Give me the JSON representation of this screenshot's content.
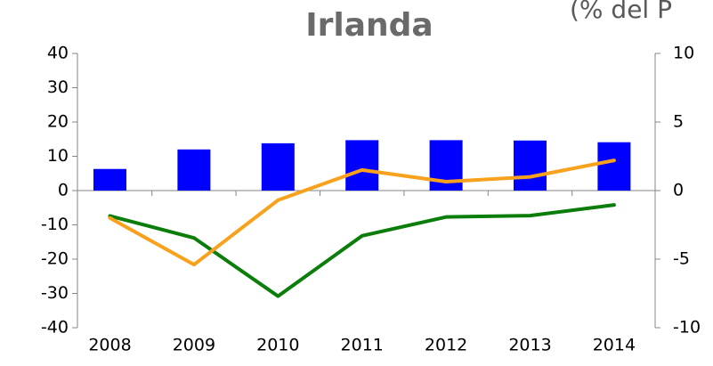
{
  "chart_data": {
    "type": "bar_line",
    "title": "Irlanda",
    "annotation": "(% del P",
    "categories": [
      "2008",
      "2009",
      "2010",
      "2011",
      "2012",
      "2013",
      "2014"
    ],
    "series": [
      {
        "type": "bar",
        "color": "#0000ff",
        "values": [
          6.3,
          12.0,
          13.8,
          14.7,
          14.7,
          14.6,
          14.1
        ]
      },
      {
        "type": "line",
        "color": "#0a7d0a",
        "values": [
          -7.4,
          -13.8,
          -30.8,
          -13.2,
          -7.7,
          -7.3,
          -4.2
        ]
      },
      {
        "type": "line",
        "color": "#f8a11c",
        "axis": "y2",
        "values": [
          -2.0,
          -5.4,
          -0.7,
          1.5,
          0.65,
          1.0,
          2.2
        ]
      }
    ],
    "ylim": [
      -40,
      40
    ],
    "yticks": [
      -40,
      -30,
      -20,
      -10,
      0,
      10,
      20,
      30,
      40
    ],
    "y2lim": [
      -10,
      10
    ],
    "y2ticks": [
      -10,
      -5,
      0,
      5,
      10
    ]
  }
}
